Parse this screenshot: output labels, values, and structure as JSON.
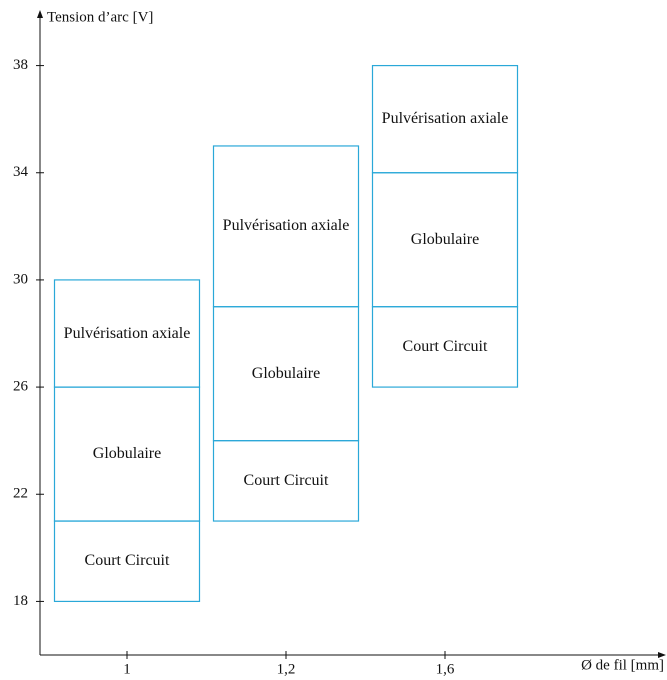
{
  "chart_data": {
    "type": "range_bar",
    "x_label": "Ø de fil [mm]",
    "y_label": "Tension d’arc [V]",
    "categories": [
      "1",
      "1,2",
      "1,6"
    ],
    "series": [
      {
        "name": "Court Circuit",
        "color": "#2aa8d8",
        "low": [
          18,
          21,
          26
        ],
        "high": [
          21,
          24,
          29
        ]
      },
      {
        "name": "Globulaire",
        "color": "#2aa8d8",
        "low": [
          21,
          24,
          29
        ],
        "high": [
          26,
          29,
          34
        ]
      },
      {
        "name": "Pulvérisation axiale",
        "color": "#2aa8d8",
        "low": [
          26,
          29,
          34
        ],
        "high": [
          30,
          35,
          38
        ]
      }
    ],
    "ylim": [
      16,
      40
    ],
    "yticks": [
      18,
      22,
      26,
      30,
      34,
      38
    ],
    "grid": false
  }
}
